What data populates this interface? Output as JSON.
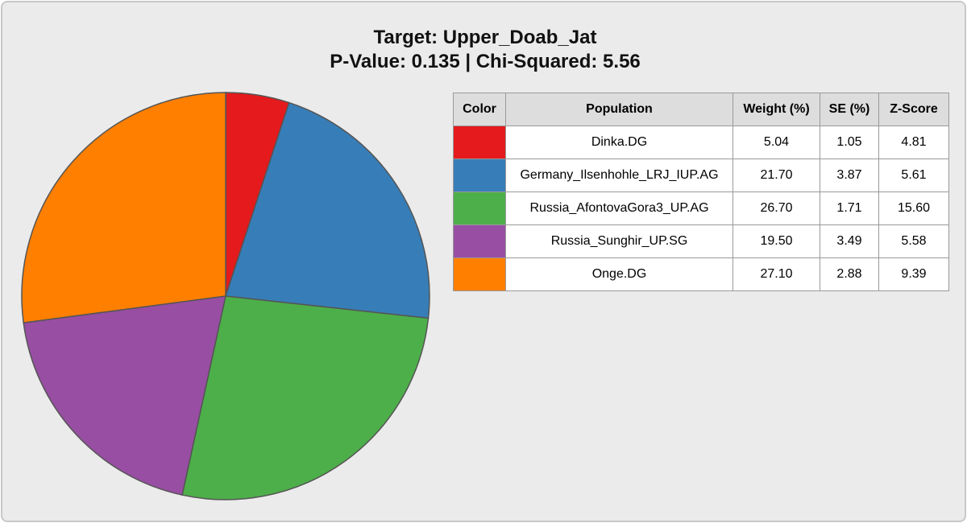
{
  "chart_data": {
    "type": "pie",
    "title": "Target: Upper_Doab_Jat",
    "subtitle": "P-Value: 0.135 | Chi-Squared: 5.56",
    "categories": [
      "Dinka.DG",
      "Germany_Ilsenhohle_LRJ_IUP.AG",
      "Russia_AfontovaGora3_UP.AG",
      "Russia_Sunghir_UP.SG",
      "Onge.DG"
    ],
    "values": [
      5.04,
      21.7,
      26.7,
      19.5,
      27.1
    ],
    "value_labels": [
      "5.04",
      "21.70",
      "26.70",
      "19.50",
      "27.10"
    ],
    "colors": [
      "#e41a1c",
      "#377eb8",
      "#4daf4a",
      "#984ea3",
      "#ff7f00"
    ]
  },
  "table": {
    "columns": [
      "Color",
      "Population",
      "Weight (%)",
      "SE (%)",
      "Z-Score"
    ],
    "se": [
      "1.05",
      "3.87",
      "1.71",
      "3.49",
      "2.88"
    ],
    "z": [
      "4.81",
      "5.61",
      "15.60",
      "5.58",
      "9.39"
    ]
  }
}
